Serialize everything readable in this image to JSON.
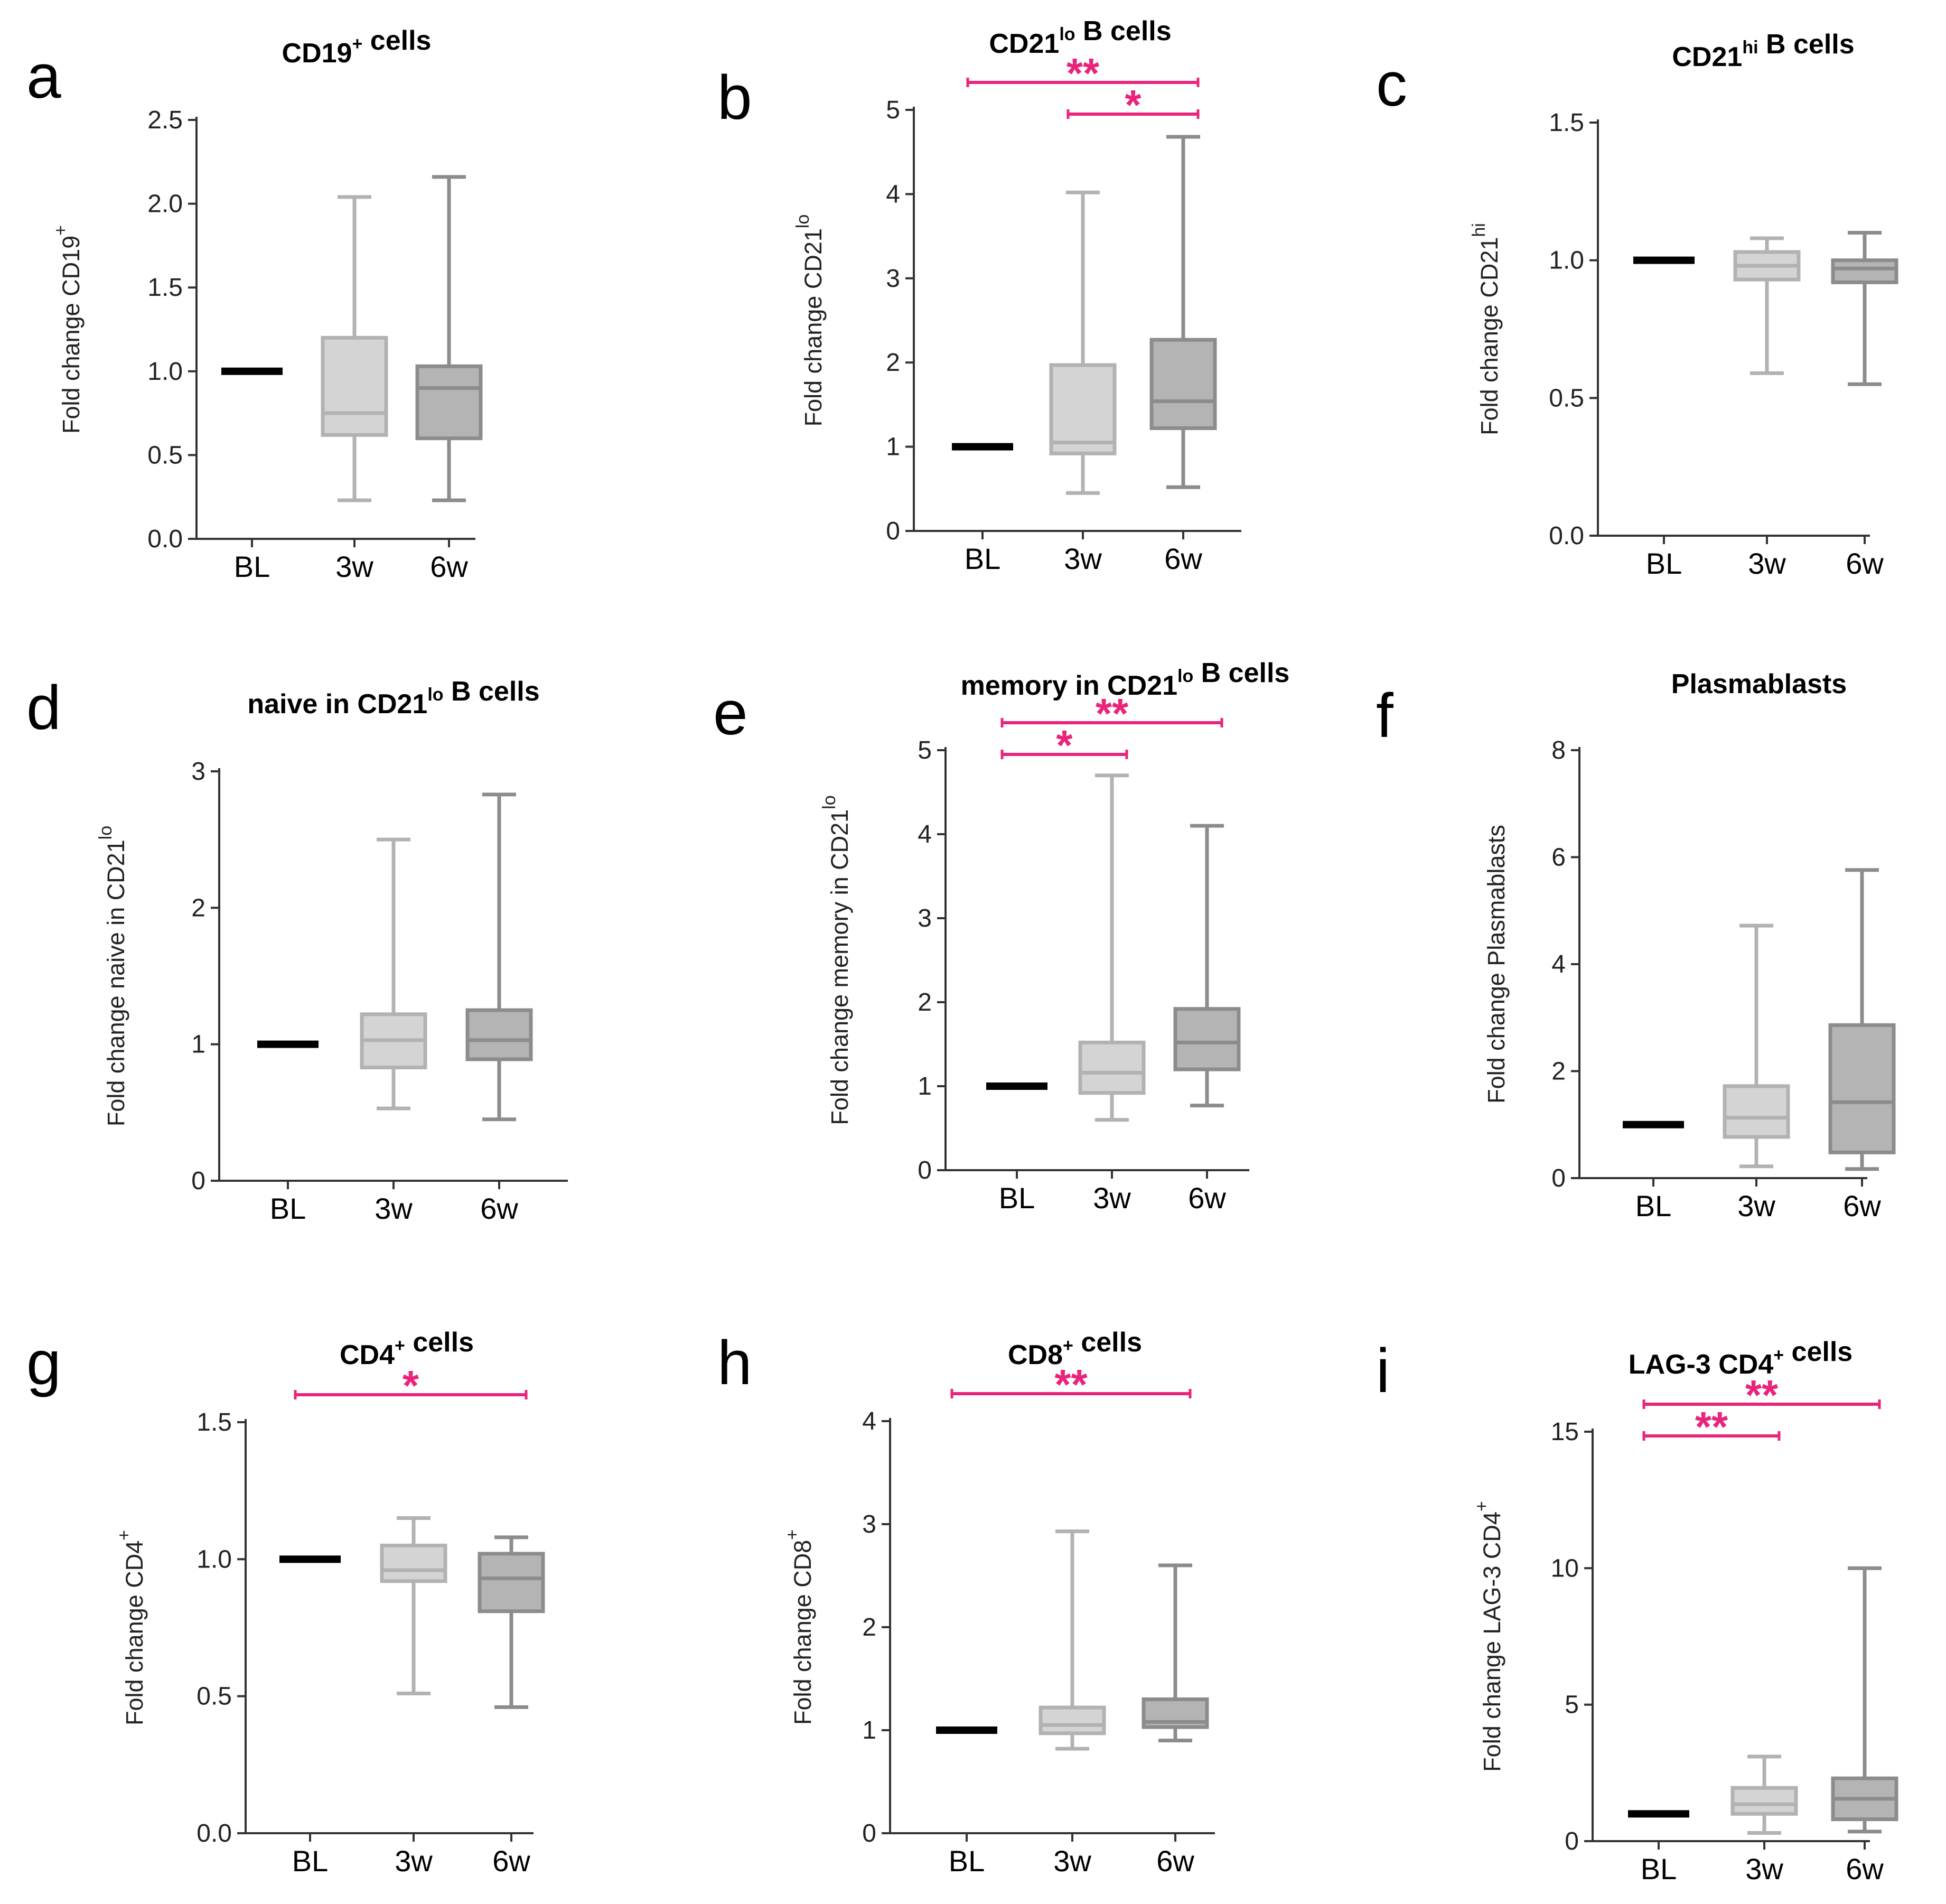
{
  "chart_data": [
    {
      "panel": "a",
      "type": "boxplot",
      "title": "CD19⁺ cells",
      "title_parts": [
        [
          "CD19",
          ""
        ],
        [
          "+",
          "sup"
        ],
        [
          " cells",
          ""
        ]
      ],
      "ylabel": "Fold change CD19⁺",
      "ylabel_parts": [
        [
          "Fold change CD19",
          ""
        ],
        [
          "+",
          "sup"
        ]
      ],
      "ylim": [
        0,
        2.5
      ],
      "yticks": [
        "0.0",
        "0.5",
        "1.0",
        "1.5",
        "2.0",
        "2.5"
      ],
      "ytick_values": [
        0,
        0.5,
        1.0,
        1.5,
        2.0,
        2.5
      ],
      "categories": [
        "BL",
        "3w",
        "6w"
      ],
      "series": [
        {
          "name": "BL",
          "min": 1.0,
          "q1": 1.0,
          "median": 1.0,
          "q3": 1.0,
          "max": 1.0
        },
        {
          "name": "3w",
          "min": 0.23,
          "q1": 0.62,
          "median": 0.75,
          "q3": 1.2,
          "max": 2.04
        },
        {
          "name": "6w",
          "min": 0.23,
          "q1": 0.6,
          "median": 0.9,
          "q3": 1.03,
          "max": 2.16
        }
      ],
      "significance": []
    },
    {
      "panel": "b",
      "type": "boxplot",
      "title": "CD21lo B cells",
      "title_parts": [
        [
          "CD21",
          ""
        ],
        [
          "lo",
          "sup"
        ],
        [
          " B cells",
          ""
        ]
      ],
      "ylabel": "Fold change CD21lo",
      "ylabel_parts": [
        [
          "Fold change CD21",
          ""
        ],
        [
          "lo",
          "sup"
        ]
      ],
      "ylim": [
        0,
        5
      ],
      "yticks": [
        "0",
        "1",
        "2",
        "3",
        "4",
        "5"
      ],
      "ytick_values": [
        0,
        1,
        2,
        3,
        4,
        5
      ],
      "categories": [
        "BL",
        "3w",
        "6w"
      ],
      "series": [
        {
          "name": "BL",
          "min": 1.0,
          "q1": 1.0,
          "median": 1.0,
          "q3": 1.0,
          "max": 1.0
        },
        {
          "name": "3w",
          "min": 0.45,
          "q1": 0.92,
          "median": 1.05,
          "q3": 1.97,
          "max": 4.02
        },
        {
          "name": "6w",
          "min": 0.52,
          "q1": 1.22,
          "median": 1.54,
          "q3": 2.27,
          "max": 4.68
        }
      ],
      "significance": [
        {
          "from": "BL",
          "to": "6w",
          "label": "**",
          "level": 0
        },
        {
          "from": "3w",
          "to": "6w",
          "label": "*",
          "level": 1
        }
      ]
    },
    {
      "panel": "c",
      "type": "boxplot",
      "title": "CD21hi B cells",
      "title_parts": [
        [
          "CD21",
          ""
        ],
        [
          "hi",
          "sup"
        ],
        [
          " B cells",
          ""
        ]
      ],
      "ylabel": "Fold change CD21hi",
      "ylabel_parts": [
        [
          "Fold change CD21",
          ""
        ],
        [
          "hi",
          "sup"
        ]
      ],
      "ylim": [
        0,
        1.5
      ],
      "yticks": [
        "0.0",
        "0.5",
        "1.0",
        "1.5"
      ],
      "ytick_values": [
        0,
        0.5,
        1.0,
        1.5
      ],
      "categories": [
        "BL",
        "3w",
        "6w"
      ],
      "series": [
        {
          "name": "BL",
          "min": 1.0,
          "q1": 1.0,
          "median": 1.0,
          "q3": 1.0,
          "max": 1.0
        },
        {
          "name": "3w",
          "min": 0.59,
          "q1": 0.93,
          "median": 0.98,
          "q3": 1.03,
          "max": 1.08
        },
        {
          "name": "6w",
          "min": 0.55,
          "q1": 0.92,
          "median": 0.97,
          "q3": 1.0,
          "max": 1.1
        }
      ],
      "significance": []
    },
    {
      "panel": "d",
      "type": "boxplot",
      "title": "naive in CD21lo B cells",
      "title_parts": [
        [
          "naive in CD21",
          ""
        ],
        [
          "lo",
          "sup"
        ],
        [
          " B cells",
          ""
        ]
      ],
      "ylabel": "Fold change naive in CD21lo",
      "ylabel_parts": [
        [
          "Fold change naive in CD21",
          ""
        ],
        [
          "lo",
          "sup"
        ]
      ],
      "ylim": [
        0,
        3
      ],
      "yticks": [
        "0",
        "1",
        "2",
        "3"
      ],
      "ytick_values": [
        0,
        1,
        2,
        3
      ],
      "categories": [
        "BL",
        "3w",
        "6w"
      ],
      "series": [
        {
          "name": "BL",
          "min": 1.0,
          "q1": 1.0,
          "median": 1.0,
          "q3": 1.0,
          "max": 1.0
        },
        {
          "name": "3w",
          "min": 0.53,
          "q1": 0.83,
          "median": 1.03,
          "q3": 1.22,
          "max": 2.5
        },
        {
          "name": "6w",
          "min": 0.45,
          "q1": 0.89,
          "median": 1.03,
          "q3": 1.25,
          "max": 2.83
        }
      ],
      "significance": []
    },
    {
      "panel": "e",
      "type": "boxplot",
      "title": "memory in CD21lo B cells",
      "title_parts": [
        [
          "memory in CD21",
          ""
        ],
        [
          "lo",
          "sup"
        ],
        [
          " B cells",
          ""
        ]
      ],
      "ylabel": "Fold change memory in CD21lo",
      "ylabel_parts": [
        [
          "Fold change memory in CD21",
          ""
        ],
        [
          "lo",
          "sup"
        ]
      ],
      "ylim": [
        0,
        5
      ],
      "yticks": [
        "0",
        "1",
        "2",
        "3",
        "4",
        "5"
      ],
      "ytick_values": [
        0,
        1,
        2,
        3,
        4,
        5
      ],
      "categories": [
        "BL",
        "3w",
        "6w"
      ],
      "series": [
        {
          "name": "BL",
          "min": 1.0,
          "q1": 1.0,
          "median": 1.0,
          "q3": 1.0,
          "max": 1.0
        },
        {
          "name": "3w",
          "min": 0.6,
          "q1": 0.92,
          "median": 1.16,
          "q3": 1.52,
          "max": 4.7
        },
        {
          "name": "6w",
          "min": 0.77,
          "q1": 1.2,
          "median": 1.52,
          "q3": 1.92,
          "max": 4.1
        }
      ],
      "significance": [
        {
          "from": "BL",
          "to": "6w",
          "label": "**",
          "level": 0
        },
        {
          "from": "BL",
          "to": "3w",
          "label": "*",
          "level": 1
        }
      ]
    },
    {
      "panel": "f",
      "type": "boxplot",
      "title": "Plasmablasts",
      "title_parts": [
        [
          "Plasmablasts",
          ""
        ]
      ],
      "ylabel": "Fold change Plasmablasts",
      "ylabel_parts": [
        [
          "Fold change Plasmablasts",
          ""
        ]
      ],
      "ylim": [
        0,
        8
      ],
      "yticks": [
        "0",
        "2",
        "4",
        "6",
        "8"
      ],
      "ytick_values": [
        0,
        2,
        4,
        6,
        8
      ],
      "categories": [
        "BL",
        "3w",
        "6w"
      ],
      "series": [
        {
          "name": "BL",
          "min": 1.0,
          "q1": 1.0,
          "median": 1.0,
          "q3": 1.0,
          "max": 1.0
        },
        {
          "name": "3w",
          "min": 0.22,
          "q1": 0.77,
          "median": 1.13,
          "q3": 1.72,
          "max": 4.72
        },
        {
          "name": "6w",
          "min": 0.17,
          "q1": 0.48,
          "median": 1.42,
          "q3": 2.86,
          "max": 5.76
        }
      ],
      "significance": []
    },
    {
      "panel": "g",
      "type": "boxplot",
      "title": "CD4⁺ cells",
      "title_parts": [
        [
          "CD4",
          ""
        ],
        [
          "+",
          "sup"
        ],
        [
          " cells",
          ""
        ]
      ],
      "ylabel": "Fold change CD4⁺",
      "ylabel_parts": [
        [
          "Fold change CD4",
          ""
        ],
        [
          "+",
          "sup"
        ]
      ],
      "ylim": [
        0,
        1.5
      ],
      "yticks": [
        "0.0",
        "0.5",
        "1.0",
        "1.5"
      ],
      "ytick_values": [
        0,
        0.5,
        1.0,
        1.5
      ],
      "categories": [
        "BL",
        "3w",
        "6w"
      ],
      "series": [
        {
          "name": "BL",
          "min": 1.0,
          "q1": 1.0,
          "median": 1.0,
          "q3": 1.0,
          "max": 1.0
        },
        {
          "name": "3w",
          "min": 0.51,
          "q1": 0.92,
          "median": 0.96,
          "q3": 1.05,
          "max": 1.15
        },
        {
          "name": "6w",
          "min": 0.46,
          "q1": 0.81,
          "median": 0.93,
          "q3": 1.02,
          "max": 1.08
        }
      ],
      "significance": [
        {
          "from": "BL",
          "to": "6w",
          "label": "*",
          "level": 0
        }
      ]
    },
    {
      "panel": "h",
      "type": "boxplot",
      "title": "CD8⁺ cells",
      "title_parts": [
        [
          "CD8",
          ""
        ],
        [
          "+",
          "sup"
        ],
        [
          " cells",
          ""
        ]
      ],
      "ylabel": "Fold change CD8⁺",
      "ylabel_parts": [
        [
          "Fold change CD8",
          ""
        ],
        [
          "+",
          "sup"
        ]
      ],
      "ylim": [
        0,
        4
      ],
      "yticks": [
        "0",
        "1",
        "2",
        "3",
        "4"
      ],
      "ytick_values": [
        0,
        1,
        2,
        3,
        4
      ],
      "categories": [
        "BL",
        "3w",
        "6w"
      ],
      "series": [
        {
          "name": "BL",
          "min": 1.0,
          "q1": 1.0,
          "median": 1.0,
          "q3": 1.0,
          "max": 1.0
        },
        {
          "name": "3w",
          "min": 0.82,
          "q1": 0.97,
          "median": 1.05,
          "q3": 1.22,
          "max": 2.93
        },
        {
          "name": "6w",
          "min": 0.9,
          "q1": 1.03,
          "median": 1.08,
          "q3": 1.3,
          "max": 2.6
        }
      ],
      "significance": [
        {
          "from": "BL",
          "to": "6w",
          "label": "**",
          "level": 0
        }
      ]
    },
    {
      "panel": "i",
      "type": "boxplot",
      "title": "LAG-3 CD4⁺ cells",
      "title_parts": [
        [
          "LAG-3 CD4",
          ""
        ],
        [
          "+",
          "sup"
        ],
        [
          " cells",
          ""
        ]
      ],
      "ylabel": "Fold change LAG-3 CD4⁺",
      "ylabel_parts": [
        [
          "Fold change LAG-3 CD4",
          ""
        ],
        [
          "+",
          "sup"
        ]
      ],
      "ylim": [
        0,
        15
      ],
      "yticks": [
        "0",
        "5",
        "10",
        "15"
      ],
      "ytick_values": [
        0,
        5,
        10,
        15
      ],
      "categories": [
        "BL",
        "3w",
        "6w"
      ],
      "series": [
        {
          "name": "BL",
          "min": 1.0,
          "q1": 1.0,
          "median": 1.0,
          "q3": 1.0,
          "max": 1.0
        },
        {
          "name": "3w",
          "min": 0.3,
          "q1": 1.0,
          "median": 1.35,
          "q3": 1.95,
          "max": 3.1
        },
        {
          "name": "6w",
          "min": 0.35,
          "q1": 0.8,
          "median": 1.55,
          "q3": 2.3,
          "max": 10.0
        }
      ],
      "significance": [
        {
          "from": "BL",
          "to": "6w",
          "label": "**",
          "level": 0
        },
        {
          "from": "BL",
          "to": "3w",
          "label": "**",
          "level": 1
        }
      ]
    }
  ],
  "colors": {
    "bl": "#000000",
    "w3_fill": "#d4d4d4",
    "w3_stroke": "#b2b2b2",
    "w6_fill": "#b4b4b4",
    "w6_stroke": "#8c8c8c",
    "significance": "#e9247a",
    "axis": "#333333"
  }
}
